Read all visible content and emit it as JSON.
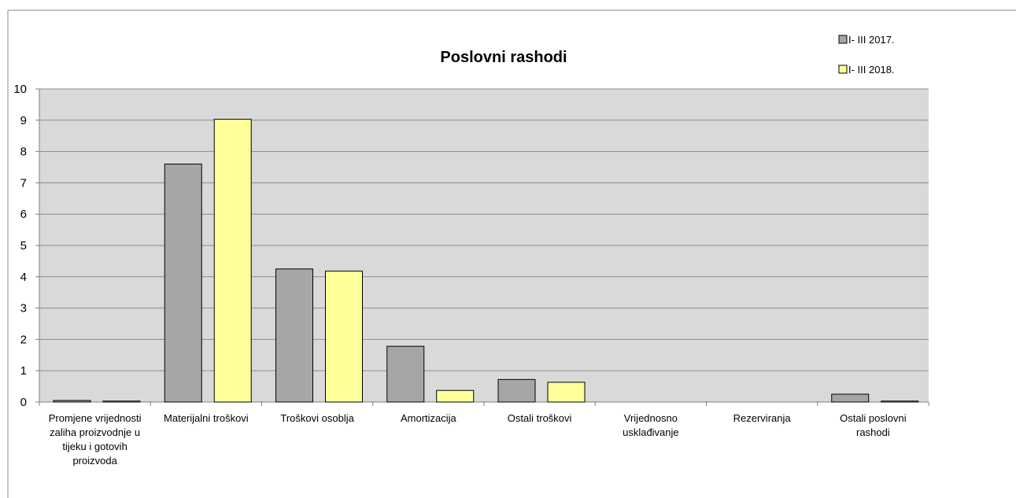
{
  "chart_data": {
    "type": "bar",
    "title": "Poslovni rashodi",
    "categories": [
      "Promjene vrijednosti zaliha proizvodnje u tijeku i gotovih proizvoda",
      "Materijalni troškovi",
      "Troškovi osoblja",
      "Amortizacija",
      "Ostali troškovi",
      "Vrijednosno usklađivanje",
      "Rezerviranja",
      "Ostali poslovni rashodi"
    ],
    "series": [
      {
        "name": "I- III 2017.",
        "color": "#a6a6a6",
        "values": [
          0.05,
          7.6,
          4.25,
          1.78,
          0.72,
          0,
          0,
          0.25
        ]
      },
      {
        "name": "I- III 2018.",
        "color": "#ffff99",
        "values": [
          0.03,
          9.03,
          4.18,
          0.37,
          0.63,
          0,
          0,
          0.03
        ]
      }
    ],
    "ylim": [
      0,
      10
    ],
    "yticks": [
      0,
      1,
      2,
      3,
      4,
      5,
      6,
      7,
      8,
      9,
      10
    ],
    "grid": true,
    "legend": "top-right"
  }
}
